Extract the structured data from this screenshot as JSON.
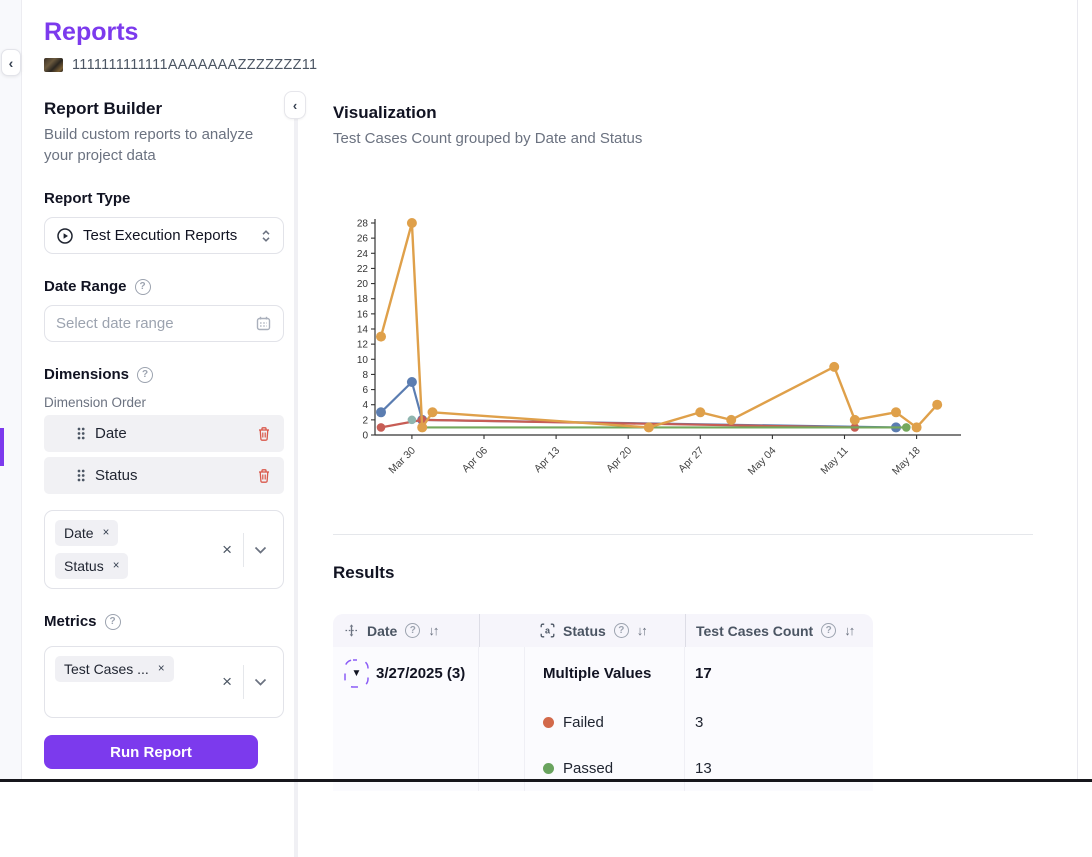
{
  "page": {
    "title": "Reports",
    "project_name": "1111111111111AAAAAAAZZZZZZZ11"
  },
  "icons": {
    "collapse": "‹",
    "help": "?",
    "sort": "↓↑",
    "clear": "×",
    "chip_close": "×",
    "expand_row": "▼"
  },
  "colors": {
    "accent": "#7c3aed",
    "danger": "#d9574a",
    "failed_dot": "#d2694a",
    "passed_dot": "#69a35e"
  },
  "sidebar": {
    "title": "Report Builder",
    "description": "Build custom reports to analyze your project data",
    "report_type": {
      "label": "Report Type",
      "value": "Test Execution Reports"
    },
    "date_range": {
      "label": "Date Range",
      "placeholder": "Select date range"
    },
    "dimensions": {
      "label": "Dimensions",
      "order_label": "Dimension Order",
      "items": [
        "Date",
        "Status"
      ],
      "chips": [
        "Date",
        "Status"
      ]
    },
    "metrics": {
      "label": "Metrics",
      "chips": [
        "Test Cases ..."
      ]
    },
    "run_button": "Run Report"
  },
  "visualization": {
    "title": "Visualization",
    "subtitle": "Test Cases Count grouped by Date and Status"
  },
  "chart_data": {
    "type": "line",
    "title": "",
    "xlabel": "",
    "ylabel": "",
    "ylim": [
      0,
      28
    ],
    "ytick_step": 2,
    "grid": false,
    "legend": "none",
    "x_ticks": [
      "Mar 30",
      "Apr 06",
      "Apr 13",
      "Apr 20",
      "Apr 27",
      "May 04",
      "May 11",
      "May 18"
    ],
    "series": [
      {
        "name": "blue",
        "color": "#5b7db1",
        "points": [
          [
            "Mar 27",
            3
          ],
          [
            "Mar 30",
            7
          ],
          [
            "Mar 31",
            2
          ],
          [
            "May 16",
            1
          ]
        ]
      },
      {
        "name": "red",
        "color": "#c75d55",
        "points": [
          [
            "Mar 27",
            1
          ],
          [
            "Mar 31",
            2
          ],
          [
            "May 12",
            1
          ]
        ]
      },
      {
        "name": "green",
        "color": "#74a85c",
        "points": [
          [
            "Mar 31",
            1
          ],
          [
            "May 17",
            1
          ]
        ]
      },
      {
        "name": "teal",
        "color": "#8fb5af",
        "points": [
          [
            "Mar 30",
            2
          ]
        ]
      },
      {
        "name": "orange",
        "color": "#dfa04a",
        "points": [
          [
            "Mar 27",
            13
          ],
          [
            "Mar 30",
            28
          ],
          [
            "Mar 31",
            1
          ],
          [
            "Apr 01",
            3
          ],
          [
            "Apr 22",
            1
          ],
          [
            "Apr 27",
            3
          ],
          [
            "Apr 30",
            2
          ],
          [
            "May 10",
            9
          ],
          [
            "May 12",
            2
          ],
          [
            "May 16",
            3
          ],
          [
            "May 18",
            1
          ],
          [
            "May 20",
            4
          ]
        ]
      }
    ]
  },
  "results": {
    "title": "Results",
    "columns": [
      {
        "label": "Date"
      },
      {
        "label": "Status"
      },
      {
        "label": "Test Cases Count"
      }
    ],
    "rows": [
      {
        "level": "group",
        "date": "3/27/2025 (3)",
        "status": "Multiple Values",
        "count": "17",
        "expanded": true
      },
      {
        "level": "child",
        "date": "",
        "status": "Failed",
        "dot": "#d2694a",
        "count": "3"
      },
      {
        "level": "child",
        "date": "",
        "status": "Passed",
        "dot": "#69a35e",
        "count": "13"
      }
    ]
  }
}
